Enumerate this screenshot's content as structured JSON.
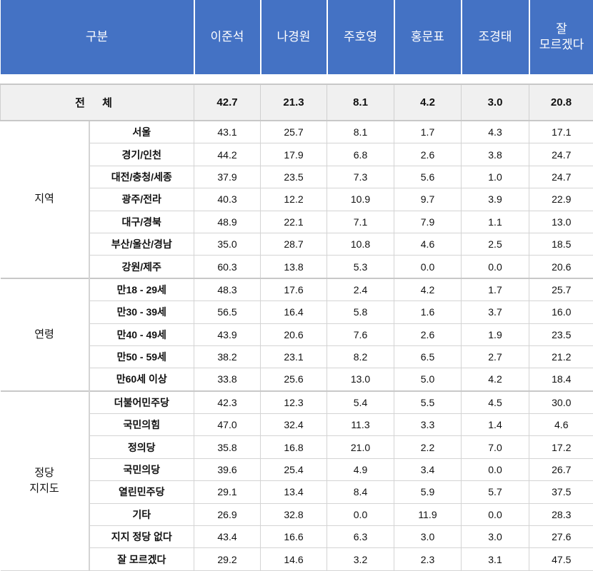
{
  "header": {
    "category": "구분",
    "columns": [
      "이준석",
      "나경원",
      "주호영",
      "홍문표",
      "조경태",
      "잘\n모르겠다"
    ]
  },
  "colors": {
    "header_bg": "#4472c4",
    "total_bg": "#f0f0f0"
  },
  "total": {
    "label": "전 체",
    "values": [
      "42.7",
      "21.3",
      "8.1",
      "4.2",
      "3.0",
      "20.8"
    ]
  },
  "groups": [
    {
      "label": "지역",
      "rows": [
        {
          "label": "서울",
          "values": [
            "43.1",
            "25.7",
            "8.1",
            "1.7",
            "4.3",
            "17.1"
          ]
        },
        {
          "label": "경기/인천",
          "values": [
            "44.2",
            "17.9",
            "6.8",
            "2.6",
            "3.8",
            "24.7"
          ]
        },
        {
          "label": "대전/충청/세종",
          "values": [
            "37.9",
            "23.5",
            "7.3",
            "5.6",
            "1.0",
            "24.7"
          ]
        },
        {
          "label": "광주/전라",
          "values": [
            "40.3",
            "12.2",
            "10.9",
            "9.7",
            "3.9",
            "22.9"
          ]
        },
        {
          "label": "대구/경북",
          "values": [
            "48.9",
            "22.1",
            "7.1",
            "7.9",
            "1.1",
            "13.0"
          ]
        },
        {
          "label": "부산/울산/경남",
          "values": [
            "35.0",
            "28.7",
            "10.8",
            "4.6",
            "2.5",
            "18.5"
          ]
        },
        {
          "label": "강원/제주",
          "values": [
            "60.3",
            "13.8",
            "5.3",
            "0.0",
            "0.0",
            "20.6"
          ]
        }
      ]
    },
    {
      "label": "연령",
      "rows": [
        {
          "label": "만18 - 29세",
          "values": [
            "48.3",
            "17.6",
            "2.4",
            "4.2",
            "1.7",
            "25.7"
          ]
        },
        {
          "label": "만30 - 39세",
          "values": [
            "56.5",
            "16.4",
            "5.8",
            "1.6",
            "3.7",
            "16.0"
          ]
        },
        {
          "label": "만40 - 49세",
          "values": [
            "43.9",
            "20.6",
            "7.6",
            "2.6",
            "1.9",
            "23.5"
          ]
        },
        {
          "label": "만50 - 59세",
          "values": [
            "38.2",
            "23.1",
            "8.2",
            "6.5",
            "2.7",
            "21.2"
          ]
        },
        {
          "label": "만60세 이상",
          "values": [
            "33.8",
            "25.6",
            "13.0",
            "5.0",
            "4.2",
            "18.4"
          ]
        }
      ]
    },
    {
      "label": "정당\n지지도",
      "rows": [
        {
          "label": "더불어민주당",
          "values": [
            "42.3",
            "12.3",
            "5.4",
            "5.5",
            "4.5",
            "30.0"
          ]
        },
        {
          "label": "국민의힘",
          "values": [
            "47.0",
            "32.4",
            "11.3",
            "3.3",
            "1.4",
            "4.6"
          ]
        },
        {
          "label": "정의당",
          "values": [
            "35.8",
            "16.8",
            "21.0",
            "2.2",
            "7.0",
            "17.2"
          ]
        },
        {
          "label": "국민의당",
          "values": [
            "39.6",
            "25.4",
            "4.9",
            "3.4",
            "0.0",
            "26.7"
          ]
        },
        {
          "label": "열린민주당",
          "values": [
            "29.1",
            "13.4",
            "8.4",
            "5.9",
            "5.7",
            "37.5"
          ]
        },
        {
          "label": "기타",
          "values": [
            "26.9",
            "32.8",
            "0.0",
            "11.9",
            "0.0",
            "28.3"
          ]
        },
        {
          "label": "지지 정당 없다",
          "values": [
            "43.4",
            "16.6",
            "6.3",
            "3.0",
            "3.0",
            "27.6"
          ]
        },
        {
          "label": "잘 모르겠다",
          "values": [
            "29.2",
            "14.6",
            "3.2",
            "2.3",
            "3.1",
            "47.5"
          ]
        }
      ]
    }
  ]
}
